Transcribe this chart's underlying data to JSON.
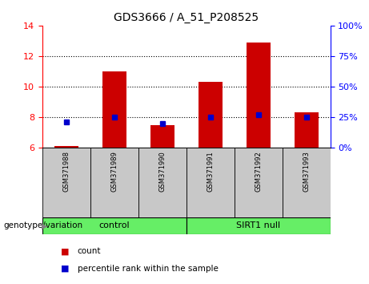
{
  "title": "GDS3666 / A_51_P208525",
  "samples": [
    "GSM371988",
    "GSM371989",
    "GSM371990",
    "GSM371991",
    "GSM371992",
    "GSM371993"
  ],
  "count_values": [
    6.1,
    11.0,
    7.5,
    10.3,
    12.9,
    8.3
  ],
  "count_baseline": 6.0,
  "percentile_values": [
    21,
    25,
    20,
    25,
    27,
    25
  ],
  "ylim_left": [
    6,
    14
  ],
  "ylim_right": [
    0,
    100
  ],
  "yticks_left": [
    6,
    8,
    10,
    12,
    14
  ],
  "yticks_right": [
    0,
    25,
    50,
    75,
    100
  ],
  "bar_color": "#CC0000",
  "dot_color": "#0000CC",
  "bar_width": 0.5,
  "group_color": "#66EE66",
  "group_bg_color": "#C8C8C8",
  "legend_count_label": "count",
  "legend_pct_label": "percentile rank within the sample",
  "genotype_label": "genotype/variation"
}
